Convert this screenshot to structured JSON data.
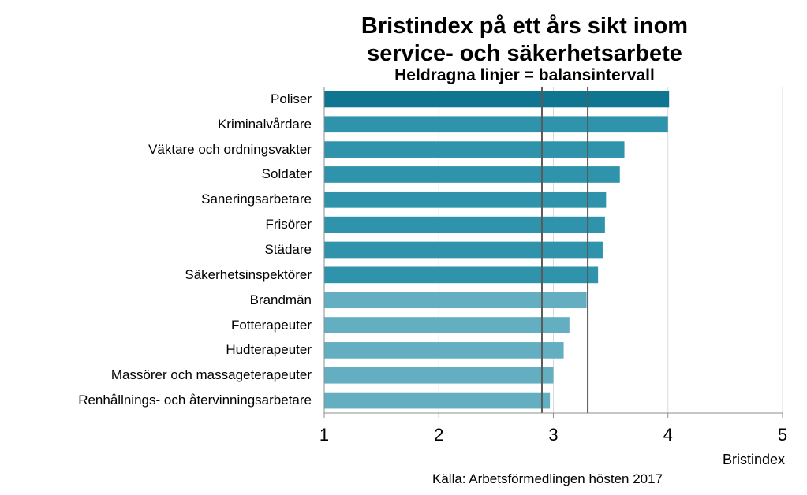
{
  "chart_data": {
    "type": "bar",
    "orientation": "horizontal",
    "title": "Bristindex på ett års sikt inom",
    "title_line2": "service- och säkerhetsarbete",
    "subtitle": "Heldragna linjer = balansintervall",
    "xlabel": "Bristindex",
    "source": "Källa: Arbetsförmedlingen hösten 2017",
    "xlim": [
      1,
      5
    ],
    "xticks": [
      "1",
      "2",
      "3",
      "4",
      "5"
    ],
    "grid": "vertical",
    "legend": "none",
    "categories": [
      "Poliser",
      "Kriminalvårdare",
      "Väktare och ordningsvakter",
      "Soldater",
      "Saneringsarbetare",
      "Frisörer",
      "Städare",
      "Säkerhetsinspektörer",
      "Brandmän",
      "Fotterapeuter",
      "Hudterapeuter",
      "Massörer och massageterapeuter",
      "Renhållnings- och återvinningsarbetare"
    ],
    "values": [
      4.01,
      4.0,
      3.62,
      3.58,
      3.46,
      3.45,
      3.43,
      3.39,
      3.29,
      3.14,
      3.09,
      3.0,
      2.97
    ],
    "balance_interval": [
      2.9,
      3.3
    ],
    "colors": {
      "first": "#0F7590",
      "dark": "#2E93AB",
      "light": "#63AFC1",
      "balance_line": "#5A5A5A",
      "grid": "#D9D9D9"
    },
    "bar_color_groups": [
      "first",
      "dark",
      "dark",
      "dark",
      "dark",
      "dark",
      "dark",
      "dark",
      "light",
      "light",
      "light",
      "light",
      "light"
    ]
  }
}
